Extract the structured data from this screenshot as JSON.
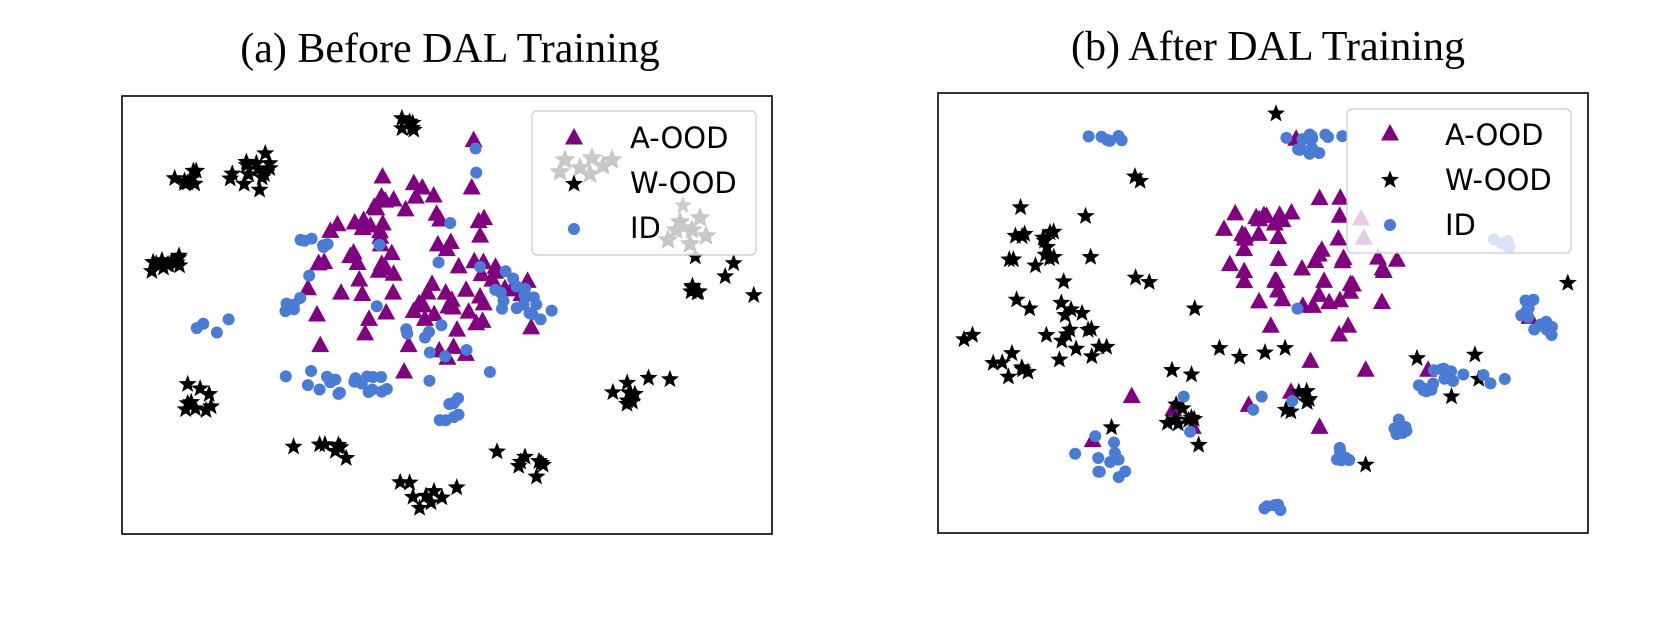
{
  "colors": {
    "a_ood": "#800080",
    "w_ood": "#000000",
    "id": "#4a7bd5",
    "w_ood_faded": "#c8c8c8"
  },
  "chart_data": [
    {
      "type": "scatter",
      "title": "(a) Before DAL Training",
      "xlabel": "",
      "ylabel": "",
      "xlim": [
        0,
        1
      ],
      "ylim": [
        0,
        1
      ],
      "axes_ticks": false,
      "grid": false,
      "legend": {
        "placement": "top-right",
        "entries": [
          "A-OOD",
          "W-OOD",
          "ID"
        ]
      },
      "series": [
        {
          "name": "A-OOD",
          "marker": "triangle",
          "clusters": [
            [
              0.46,
              0.62,
              0.12,
              0.12
            ],
            [
              0.43,
              0.78,
              0.05,
              0.04
            ],
            [
              0.35,
              0.66,
              0.06,
              0.06
            ],
            [
              0.58,
              0.55,
              0.05,
              0.08
            ],
            [
              0.5,
              0.48,
              0.06,
              0.08
            ]
          ],
          "points": [
            [
              0.541,
              0.898
            ],
            [
              0.551,
              0.68
            ],
            [
              0.557,
              0.72
            ],
            [
              0.545,
              0.48
            ],
            [
              0.518,
              0.61
            ],
            [
              0.488,
              0.418
            ],
            [
              0.434,
              0.37
            ],
            [
              0.374,
              0.457
            ],
            [
              0.3,
              0.5
            ],
            [
              0.311,
              0.62
            ],
            [
              0.397,
              0.69
            ],
            [
              0.417,
              0.55
            ],
            [
              0.449,
              0.8
            ],
            [
              0.462,
              0.79
            ],
            [
              0.405,
              0.76
            ],
            [
              0.484,
              0.73
            ],
            [
              0.477,
              0.57
            ],
            [
              0.395,
              0.6
            ],
            [
              0.38,
              0.49
            ],
            [
              0.441,
              0.43
            ],
            [
              0.529,
              0.41
            ],
            [
              0.589,
              0.56
            ],
            [
              0.337,
              0.55
            ],
            [
              0.358,
              0.71
            ],
            [
              0.286,
              0.56
            ],
            [
              0.305,
              0.43
            ],
            [
              0.498,
              0.55
            ],
            [
              0.486,
              0.66
            ],
            [
              0.365,
              0.58
            ],
            [
              0.415,
              0.64
            ],
            [
              0.466,
              0.49
            ],
            [
              0.538,
              0.79
            ],
            [
              0.556,
              0.62
            ]
          ]
        },
        {
          "name": "W-OOD",
          "marker": "star",
          "clusters": [
            [
              0.22,
              0.85,
              0.03,
              0.03
            ],
            [
              0.19,
              0.81,
              0.03,
              0.025
            ],
            [
              0.11,
              0.81,
              0.02,
              0.02
            ],
            [
              0.44,
              0.94,
              0.02,
              0.02
            ],
            [
              0.06,
              0.61,
              0.015,
              0.015
            ],
            [
              0.08,
              0.62,
              0.012,
              0.015
            ],
            [
              0.12,
              0.31,
              0.025,
              0.03
            ],
            [
              0.33,
              0.19,
              0.02,
              0.02
            ],
            [
              0.47,
              0.09,
              0.03,
              0.035
            ],
            [
              0.63,
              0.15,
              0.02,
              0.025
            ],
            [
              0.77,
              0.32,
              0.025,
              0.025
            ],
            [
              0.88,
              0.56,
              0.008,
              0.01
            ]
          ],
          "points": [
            [
              0.928,
              0.588
            ],
            [
              0.941,
              0.618
            ],
            [
              0.882,
              0.633
            ],
            [
              0.864,
              0.7
            ],
            [
              0.863,
              0.75
            ],
            [
              0.972,
              0.545
            ],
            [
              0.081,
              0.812
            ],
            [
              0.105,
              0.81
            ],
            [
              0.046,
              0.6
            ],
            [
              0.101,
              0.342
            ],
            [
              0.137,
              0.291
            ],
            [
              0.264,
              0.199
            ],
            [
              0.304,
              0.204
            ],
            [
              0.428,
              0.118
            ],
            [
              0.515,
              0.106
            ],
            [
              0.577,
              0.188
            ],
            [
              0.62,
              0.176
            ],
            [
              0.81,
              0.356
            ],
            [
              0.843,
              0.353
            ]
          ]
        },
        {
          "name": "ID",
          "marker": "circle",
          "clusters": [
            [
              0.27,
              0.52,
              0.02,
              0.02
            ],
            [
              0.47,
              0.44,
              0.04,
              0.04
            ],
            [
              0.37,
              0.34,
              0.04,
              0.02
            ],
            [
              0.59,
              0.55,
              0.02,
              0.04
            ],
            [
              0.63,
              0.52,
              0.015,
              0.03
            ],
            [
              0.3,
              0.67,
              0.03,
              0.015
            ],
            [
              0.48,
              0.28,
              0.04,
              0.035
            ],
            [
              0.33,
              0.36,
              0.05,
              0.02
            ]
          ],
          "points": [
            [
              0.544,
              0.88
            ],
            [
              0.545,
              0.825
            ],
            [
              0.505,
              0.71
            ],
            [
              0.396,
              0.66
            ],
            [
              0.487,
              0.62
            ],
            [
              0.385,
              0.33
            ],
            [
              0.333,
              0.32
            ],
            [
              0.252,
              0.36
            ],
            [
              0.115,
              0.47
            ],
            [
              0.146,
              0.46
            ],
            [
              0.125,
              0.48
            ],
            [
              0.164,
              0.49
            ],
            [
              0.288,
              0.59
            ],
            [
              0.392,
              0.52
            ],
            [
              0.473,
              0.35
            ],
            [
              0.566,
              0.37
            ],
            [
              0.661,
              0.51
            ],
            [
              0.644,
              0.49
            ],
            [
              0.517,
              0.31
            ],
            [
              0.59,
              0.6
            ],
            [
              0.62,
              0.56
            ],
            [
              0.551,
              0.61
            ],
            [
              0.53,
              0.42
            ],
            [
              0.286,
              0.34
            ],
            [
              0.304,
              0.33
            ]
          ]
        }
      ]
    },
    {
      "type": "scatter",
      "title": "(b) After DAL Training",
      "xlabel": "",
      "ylabel": "",
      "xlim": [
        0,
        1
      ],
      "ylim": [
        0,
        1
      ],
      "axes_ticks": false,
      "grid": false,
      "legend": {
        "placement": "top-right",
        "entries": [
          "A-OOD",
          "W-OOD",
          "ID"
        ]
      },
      "series": [
        {
          "name": "A-OOD",
          "marker": "triangle",
          "clusters": [
            [
              0.54,
              0.64,
              0.12,
              0.13
            ],
            [
              0.48,
              0.69,
              0.06,
              0.05
            ],
            [
              0.63,
              0.57,
              0.06,
              0.06
            ]
          ],
          "points": [
            [
              0.472,
              0.668
            ],
            [
              0.44,
              0.69
            ],
            [
              0.53,
              0.71
            ],
            [
              0.587,
              0.76
            ],
            [
              0.618,
              0.72
            ],
            [
              0.655,
              0.67
            ],
            [
              0.684,
              0.6
            ],
            [
              0.706,
              0.62
            ],
            [
              0.56,
              0.6
            ],
            [
              0.523,
              0.55
            ],
            [
              0.449,
              0.61
            ],
            [
              0.53,
              0.53
            ],
            [
              0.586,
              0.54
            ],
            [
              0.631,
              0.47
            ],
            [
              0.617,
              0.45
            ],
            [
              0.512,
              0.47
            ],
            [
              0.573,
              0.39
            ],
            [
              0.478,
              0.29
            ],
            [
              0.543,
              0.32
            ],
            [
              0.587,
              0.24
            ],
            [
              0.392,
              0.24
            ],
            [
              0.362,
              0.28
            ],
            [
              0.238,
              0.21
            ],
            [
              0.298,
              0.31
            ],
            [
              0.658,
              0.37
            ],
            [
              0.754,
              0.37
            ],
            [
              0.91,
              0.49
            ],
            [
              0.551,
              0.895
            ]
          ]
        },
        {
          "name": "W-OOD",
          "marker": "star",
          "clusters": [
            [
              0.19,
              0.55,
              0.06,
              0.14
            ],
            [
              0.14,
              0.66,
              0.04,
              0.05
            ],
            [
              0.23,
              0.45,
              0.05,
              0.06
            ],
            [
              0.11,
              0.38,
              0.03,
              0.03
            ],
            [
              0.39,
              0.27,
              0.03,
              0.03
            ],
            [
              0.55,
              0.3,
              0.03,
              0.03
            ]
          ],
          "points": [
            [
              0.52,
              0.953
            ],
            [
              0.311,
              0.8
            ],
            [
              0.303,
              0.81
            ],
            [
              0.053,
              0.45
            ],
            [
              0.04,
              0.44
            ],
            [
              0.121,
              0.53
            ],
            [
              0.141,
              0.51
            ],
            [
              0.127,
              0.74
            ],
            [
              0.227,
              0.72
            ],
            [
              0.325,
              0.57
            ],
            [
              0.395,
              0.51
            ],
            [
              0.433,
              0.42
            ],
            [
              0.503,
              0.41
            ],
            [
              0.534,
              0.42
            ],
            [
              0.39,
              0.36
            ],
            [
              0.36,
              0.37
            ],
            [
              0.353,
              0.25
            ],
            [
              0.267,
              0.24
            ],
            [
              0.401,
              0.2
            ],
            [
              0.464,
              0.4
            ],
            [
              0.658,
              0.155
            ],
            [
              0.737,
              0.397
            ],
            [
              0.79,
              0.31
            ],
            [
              0.832,
              0.35
            ],
            [
              0.826,
              0.405
            ],
            [
              0.969,
              0.568
            ],
            [
              0.304,
              0.58
            ]
          ]
        },
        {
          "name": "ID",
          "marker": "circle",
          "clusters": [
            [
              0.58,
              0.9,
              0.02,
              0.01
            ],
            [
              0.57,
              0.87,
              0.02,
              0.01
            ],
            [
              0.26,
              0.895,
              0.03,
              0.008
            ],
            [
              0.87,
              0.66,
              0.02,
              0.01
            ],
            [
              0.89,
              0.51,
              0.02,
              0.03
            ],
            [
              0.93,
              0.47,
              0.015,
              0.02
            ],
            [
              0.75,
              0.34,
              0.015,
              0.02
            ],
            [
              0.81,
              0.36,
              0.04,
              0.015
            ],
            [
              0.71,
              0.24,
              0.02,
              0.02
            ],
            [
              0.64,
              0.18,
              0.03,
              0.015
            ],
            [
              0.52,
              0.07,
              0.02,
              0.02
            ],
            [
              0.26,
              0.17,
              0.02,
              0.04
            ]
          ],
          "points": [
            [
              0.536,
              0.898
            ],
            [
              0.6,
              0.9
            ],
            [
              0.622,
              0.902
            ],
            [
              0.553,
              0.51
            ],
            [
              0.498,
              0.31
            ],
            [
              0.485,
              0.28
            ],
            [
              0.545,
              0.3
            ],
            [
              0.388,
              0.23
            ],
            [
              0.378,
              0.31
            ],
            [
              0.211,
              0.18
            ],
            [
              0.242,
              0.22
            ],
            [
              0.288,
              0.14
            ],
            [
              0.278,
              0.127
            ],
            [
              0.944,
              0.45
            ],
            [
              0.916,
              0.53
            ],
            [
              0.763,
              0.37
            ],
            [
              0.85,
              0.34
            ],
            [
              0.872,
              0.35
            ]
          ]
        }
      ]
    }
  ]
}
